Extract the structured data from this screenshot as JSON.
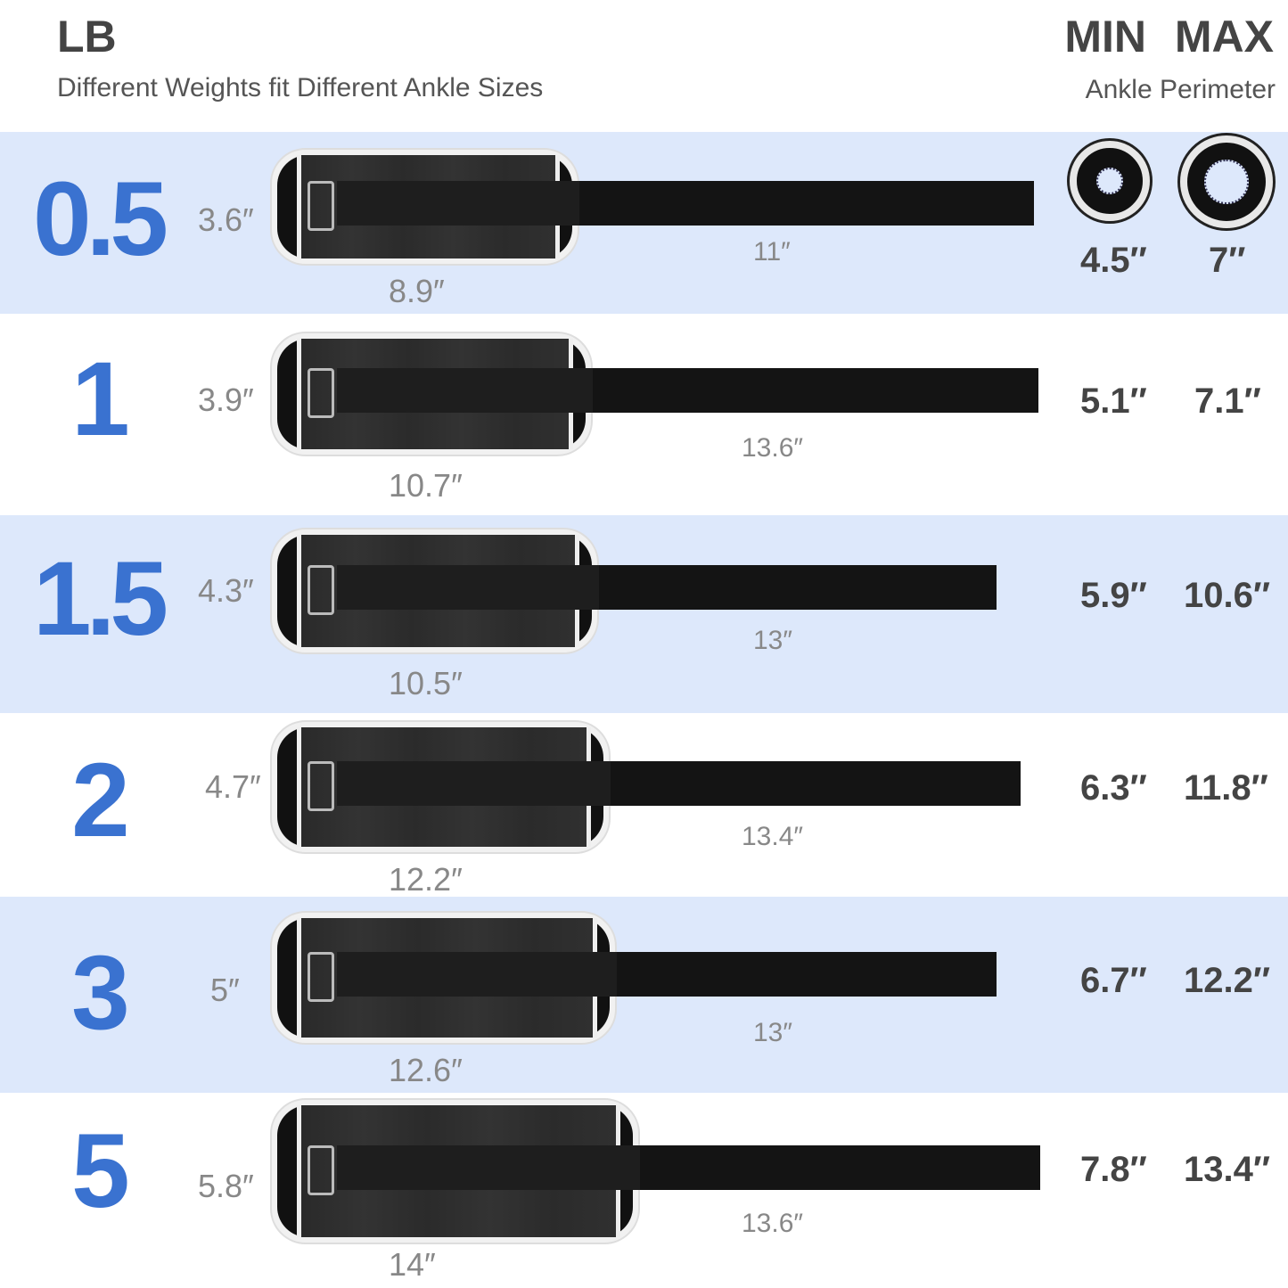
{
  "header": {
    "unit": "LB",
    "subtitle": "Different Weights fit Different Ankle Sizes",
    "min_label": "MIN",
    "max_label": "MAX",
    "perimeter_label": "Ankle Perimeter"
  },
  "colors": {
    "accent": "#3a72d0",
    "band": "#dde8fb"
  },
  "rows": [
    {
      "weight": "0.5",
      "height": "3.6″",
      "width": "8.9″",
      "strap": "11″",
      "min": "4.5″",
      "max": "7″",
      "icon": "ankle-ring-icon"
    },
    {
      "weight": "1",
      "height": "3.9″",
      "width": "10.7″",
      "strap": "13.6″",
      "min": "5.1″",
      "max": "7.1″"
    },
    {
      "weight": "1.5",
      "height": "4.3″",
      "width": "10.5″",
      "strap": "13″",
      "min": "5.9″",
      "max": "10.6″"
    },
    {
      "weight": "2",
      "height": "4.7″",
      "width": "12.2″",
      "strap": "13.4″",
      "min": "6.3″",
      "max": "11.8″"
    },
    {
      "weight": "3",
      "height": "5″",
      "width": "12.6″",
      "strap": "13″",
      "min": "6.7″",
      "max": "12.2″"
    },
    {
      "weight": "5",
      "height": "5.8″",
      "width": "14″",
      "strap": "13.6″",
      "min": "7.8″",
      "max": "13.4″"
    }
  ]
}
